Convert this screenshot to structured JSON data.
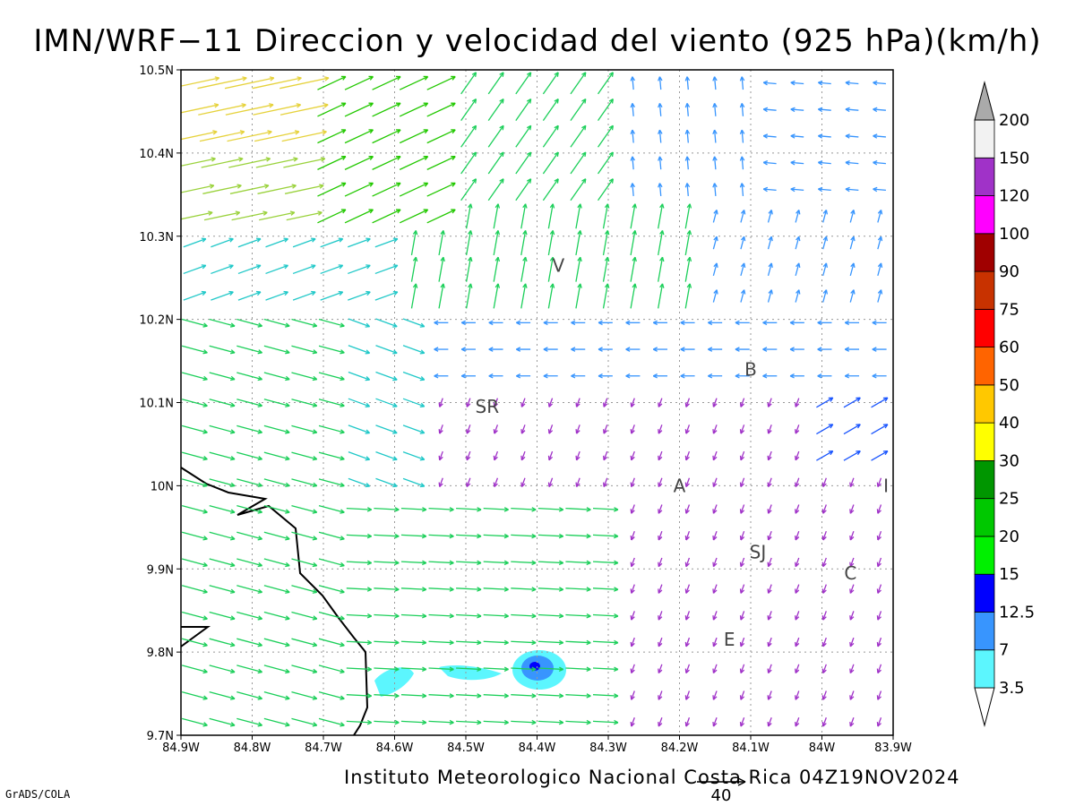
{
  "title": "IMN/WRF−11 Direccion y velocidad del viento (925 hPa)(km/h)",
  "credit": "Instituto Meteorologico Nacional Costa Rica 04Z19NOV2024",
  "software": "GrADS/COLA",
  "reference_vector": {
    "label": "40",
    "speed": 40
  },
  "axes": {
    "x_ticks": [
      "84.9W",
      "84.8W",
      "84.7W",
      "84.6W",
      "84.5W",
      "84.4W",
      "84.3W",
      "84.2W",
      "84.1W",
      "84W",
      "83.9W"
    ],
    "y_ticks": [
      "10.5N",
      "10.4N",
      "10.3N",
      "10.2N",
      "10.1N",
      "10N",
      "9.9N",
      "9.8N",
      "9.7N"
    ],
    "lon_range": [
      -84.9,
      -83.9
    ],
    "lat_range": [
      9.7,
      10.5
    ],
    "grid": "dotted"
  },
  "colorbar": {
    "levels": [
      "3.5",
      "7",
      "12.5",
      "15",
      "20",
      "25",
      "30",
      "40",
      "50",
      "60",
      "75",
      "90",
      "100",
      "120",
      "150",
      "200"
    ],
    "colors": [
      "#ffffff",
      "#5cf6fe",
      "#3895fe",
      "#0000fe",
      "#00f000",
      "#00c800",
      "#009600",
      "#ffff00",
      "#ffc800",
      "#ff6400",
      "#ff0000",
      "#c83200",
      "#a00000",
      "#ff00ff",
      "#a032c8",
      "#f2f2f2",
      "#aaaaaa"
    ]
  },
  "places": [
    {
      "label": "V",
      "lon": -84.37,
      "lat": 10.265
    },
    {
      "label": "B",
      "lon": -84.1,
      "lat": 10.14
    },
    {
      "label": "SR",
      "lon": -84.47,
      "lat": 10.095
    },
    {
      "label": "A",
      "lon": -84.2,
      "lat": 10.0
    },
    {
      "label": "I",
      "lon": -83.91,
      "lat": 10.0
    },
    {
      "label": "SJ",
      "lon": -84.09,
      "lat": 9.92
    },
    {
      "label": "C",
      "lon": -83.96,
      "lat": 9.895
    },
    {
      "label": "E",
      "lon": -84.13,
      "lat": 9.815
    }
  ],
  "wind_field": {
    "description_regions": [
      {
        "name": "western-onshore",
        "dir_deg": 100,
        "speed": 17
      },
      {
        "name": "northwest-upslope",
        "dir_deg": 55,
        "speed": 22
      },
      {
        "name": "central-valley-light",
        "dir_deg": 200,
        "speed": 4
      },
      {
        "name": "north-upslope",
        "dir_deg": 350,
        "speed": 12
      },
      {
        "name": "northeast-easterlies",
        "dir_deg": 270,
        "speed": 8
      }
    ]
  },
  "shaded_areas": [
    {
      "label": "3.5-7",
      "color": "#5cf6fe"
    },
    {
      "label": "7-12.5",
      "color": "#3895fe"
    },
    {
      "label": "12.5-15",
      "color": "#0000fe"
    }
  ]
}
